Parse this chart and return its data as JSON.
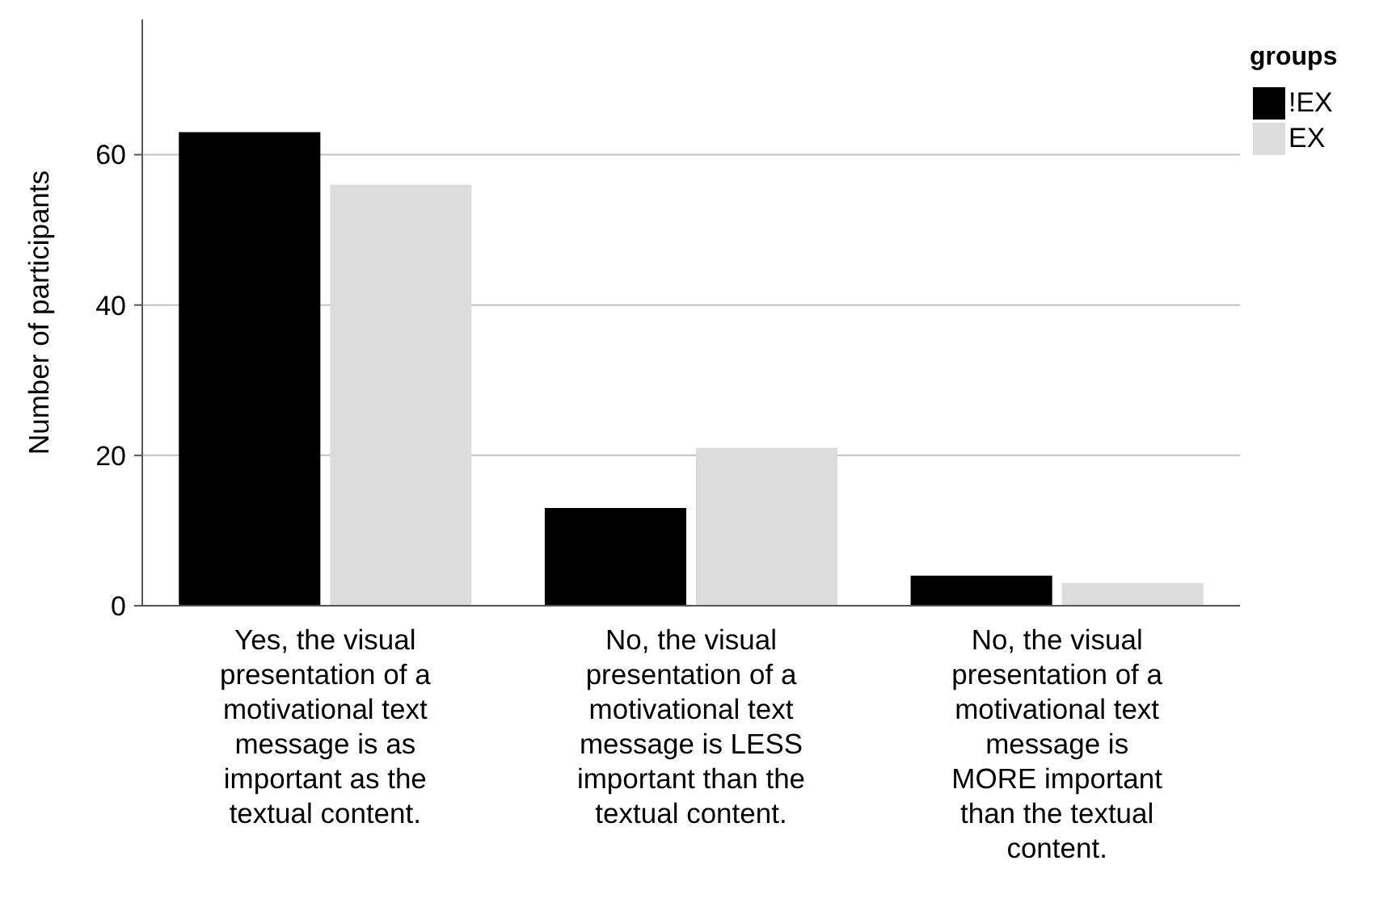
{
  "chart_data": {
    "type": "bar",
    "ylabel": "Number of participants",
    "legend_title": "groups",
    "legend": "top right",
    "categories": [
      "Yes, the visual\npresentation of a\nmotivational text\nmessage is as\nimportant as the\ntextual content.",
      "No, the visual\npresentation of a\nmotivational text\nmessage is LESS\nimportant than the\ntextual content.",
      "No, the visual\npresentation of a\nmotivational text\nmessage is\nMORE important\nthan the textual\ncontent."
    ],
    "series": [
      {
        "name": "!EX",
        "color": "#000000",
        "values": [
          63,
          13,
          4
        ]
      },
      {
        "name": "EX",
        "color": "#dcdcdc",
        "values": [
          56,
          21,
          3
        ]
      }
    ],
    "ylim": [
      0,
      78
    ],
    "yticks": [
      0,
      20,
      40,
      60
    ],
    "grid": "y"
  }
}
